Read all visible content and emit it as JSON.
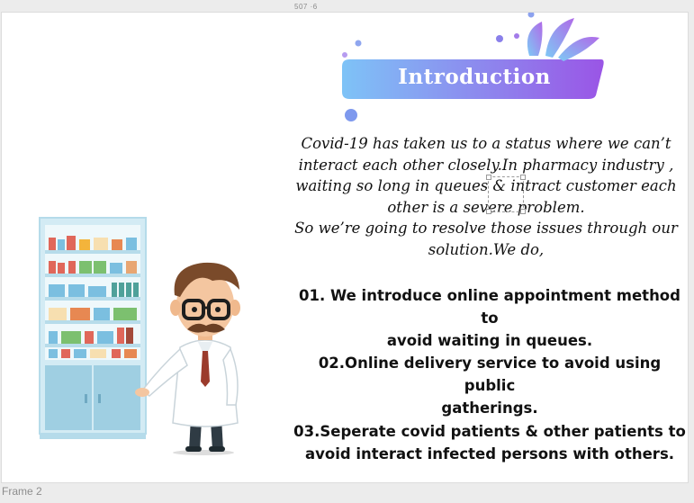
{
  "topbar": {
    "coords_text": "507  ·6"
  },
  "frame_label": "Frame 2",
  "slide": {
    "title": "Introduction",
    "intro_lines": [
      "Covid-19 has taken us to a status where we can’t",
      "interact each other closely.In pharmacy industry ,",
      "waiting so long in queues & intract customer each",
      "other is a severe problem.",
      "So we’re going to resolve those issues through our",
      "solution.We do,"
    ],
    "points": [
      {
        "line1": "01. We introduce online appointment method to",
        "line2": "avoid waiting in queues."
      },
      {
        "line1": "02.Online delivery service to avoid using public",
        "line2": "gatherings."
      },
      {
        "line1": "03.Seperate covid patients & other patients to",
        "line2": "avoid interact infected persons with others."
      }
    ]
  },
  "colors": {
    "banner_start": "#7ec3f7",
    "banner_end": "#9a55e6",
    "splash_blue": "#7fa3f0",
    "splash_purple": "#a36bea",
    "cabinet": "#b9dceb",
    "coat": "#ffffff",
    "hair": "#7a4a2a",
    "tie": "#9b3b2c"
  },
  "icons": {
    "banner": "paint-splash-banner",
    "illustration": "pharmacist-with-medicine-cabinet"
  }
}
